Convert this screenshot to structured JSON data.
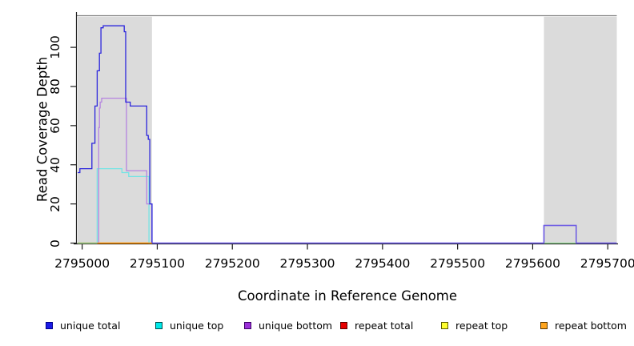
{
  "chart_data": {
    "type": "line",
    "style": "step-after-coverage-plot",
    "xlabel": "Coordinate in Reference Genome",
    "ylabel": "Read Coverage Depth",
    "xlim": [
      2794994,
      2795712
    ],
    "ylim": [
      0,
      116
    ],
    "x_ticks": [
      2795000,
      2795100,
      2795200,
      2795300,
      2795400,
      2795500,
      2795600,
      2795700
    ],
    "x_tick_labels": [
      "2795000",
      "2795100",
      "2795200",
      "2795300",
      "2795400",
      "2795500",
      "2795600",
      "2795700"
    ],
    "y_ticks": [
      0,
      20,
      40,
      60,
      80,
      100
    ],
    "y_tick_labels": [
      "0",
      "20",
      "40",
      "60",
      "80",
      "100"
    ],
    "grid": false,
    "shaded_regions": [
      {
        "name": "left-repeat-region",
        "x0": 2794994,
        "x1": 2795093,
        "color": "#DBDBDB"
      },
      {
        "name": "right-repeat-region",
        "x0": 2795615,
        "x1": 2795712,
        "color": "#DBDBDB"
      }
    ],
    "top_border_color": "#8F8F8F",
    "axis_color": "#1A1A1A",
    "series": [
      {
        "name": "repeat total",
        "color": "#E00000",
        "in_legend": true,
        "points": [
          [
            2794994,
            0
          ],
          [
            2795093,
            0
          ]
        ]
      },
      {
        "name": "repeat top",
        "color": "#FFFF00",
        "in_legend": true,
        "points": [
          [
            2794994,
            0
          ],
          [
            2795093,
            0
          ]
        ]
      },
      {
        "name": "unique top",
        "color": "#74E4E4",
        "in_legend": true,
        "points": [
          [
            2794994,
            0
          ],
          [
            2795020,
            38
          ],
          [
            2795053,
            36
          ],
          [
            2795062,
            34
          ],
          [
            2795089,
            0
          ],
          [
            2795093,
            0
          ]
        ]
      },
      {
        "name": "unique bottom",
        "color": "#B583E0",
        "in_legend": true,
        "points": [
          [
            2794994,
            0
          ],
          [
            2795022,
            59
          ],
          [
            2795023,
            69
          ],
          [
            2795024,
            72
          ],
          [
            2795026,
            74
          ],
          [
            2795059,
            37
          ],
          [
            2795086,
            20
          ],
          [
            2795093,
            0
          ],
          [
            2795615,
            9
          ],
          [
            2795658,
            0
          ],
          [
            2795712,
            0
          ]
        ]
      },
      {
        "name": "unique total",
        "color": "#2B25DC",
        "in_legend": true,
        "points": [
          [
            2794994,
            36
          ],
          [
            2794997,
            38
          ],
          [
            2795013,
            51
          ],
          [
            2795017,
            70
          ],
          [
            2795020,
            88
          ],
          [
            2795023,
            97
          ],
          [
            2795025,
            110
          ],
          [
            2795028,
            111
          ],
          [
            2795056,
            108
          ],
          [
            2795058,
            72
          ],
          [
            2795064,
            70
          ],
          [
            2795086,
            55
          ],
          [
            2795088,
            53
          ],
          [
            2795090,
            20
          ],
          [
            2795093,
            0
          ],
          [
            2795615,
            9
          ],
          [
            2795658,
            0
          ],
          [
            2795712,
            0
          ]
        ]
      },
      {
        "name": "repeat bottom",
        "color": "#FF9000",
        "in_legend": true,
        "points": [
          [
            2794994,
            0
          ],
          [
            2795093,
            0
          ]
        ]
      },
      {
        "name": "overlap-green-left",
        "color": "#92DC92",
        "in_legend": false,
        "points": [
          [
            2794994,
            0
          ],
          [
            2795020,
            0
          ]
        ]
      },
      {
        "name": "overlap-green-right",
        "color": "#92DC92",
        "in_legend": false,
        "points": [
          [
            2795615,
            0
          ],
          [
            2795658,
            0
          ]
        ]
      },
      {
        "name": "overlap-baseline-violet",
        "color": "#6F5EE4",
        "in_legend": false,
        "points": [
          [
            2795093,
            0
          ],
          [
            2795615,
            9
          ],
          [
            2795658,
            0
          ],
          [
            2795712,
            0
          ]
        ]
      }
    ],
    "legend": [
      {
        "label": "unique total",
        "fill": "#1A1AE6",
        "border": "#00008B"
      },
      {
        "label": "unique top",
        "fill": "#00E8E8",
        "border": "#004D4D"
      },
      {
        "label": "unique bottom",
        "fill": "#9B30D9",
        "border": "#3D0066"
      },
      {
        "label": "repeat total",
        "fill": "#E60000",
        "border": "#5C0000"
      },
      {
        "label": "repeat top",
        "fill": "#FFFF2E",
        "border": "#5C5C00"
      },
      {
        "label": "repeat bottom",
        "fill": "#FFA51E",
        "border": "#5C3A00"
      }
    ],
    "legend_position": "bottom"
  }
}
